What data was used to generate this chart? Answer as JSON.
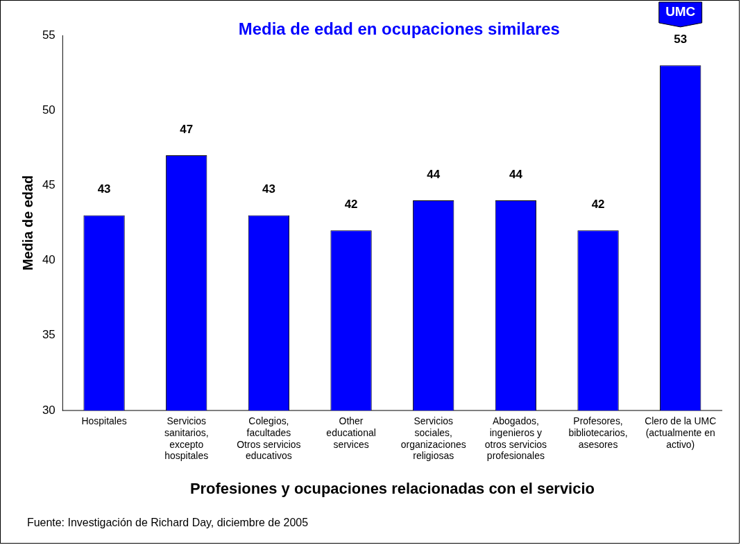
{
  "chart_data": {
    "type": "bar",
    "title": "Media de edad en ocupaciones similares",
    "xlabel": "Profesiones y ocupaciones relacionadas con el servicio",
    "ylabel": "Media de edad",
    "categories": [
      "Hospitales",
      "Servicios sanitarios, excepto hospitales",
      "Colegios, facultades Otros servicios educativos",
      "Other educational services",
      "Servicios sociales, organizaciones religiosas",
      "Abogados, ingenieros y otros servicios profesionales",
      "Profesores, bibliotecarios, asesores",
      "Clero de la UMC (actualmente en activo)"
    ],
    "values": [
      43,
      47,
      43,
      42,
      44,
      44,
      42,
      53
    ],
    "color": "#0000ff",
    "ylim": [
      30,
      55
    ],
    "yticks": [
      30,
      35,
      40,
      45,
      50,
      55
    ],
    "grid": false,
    "data_labels": true,
    "legend": false,
    "annotations": [
      "UMC",
      "Fuente: Investigación de Richard Day, diciembre de 2005"
    ]
  }
}
